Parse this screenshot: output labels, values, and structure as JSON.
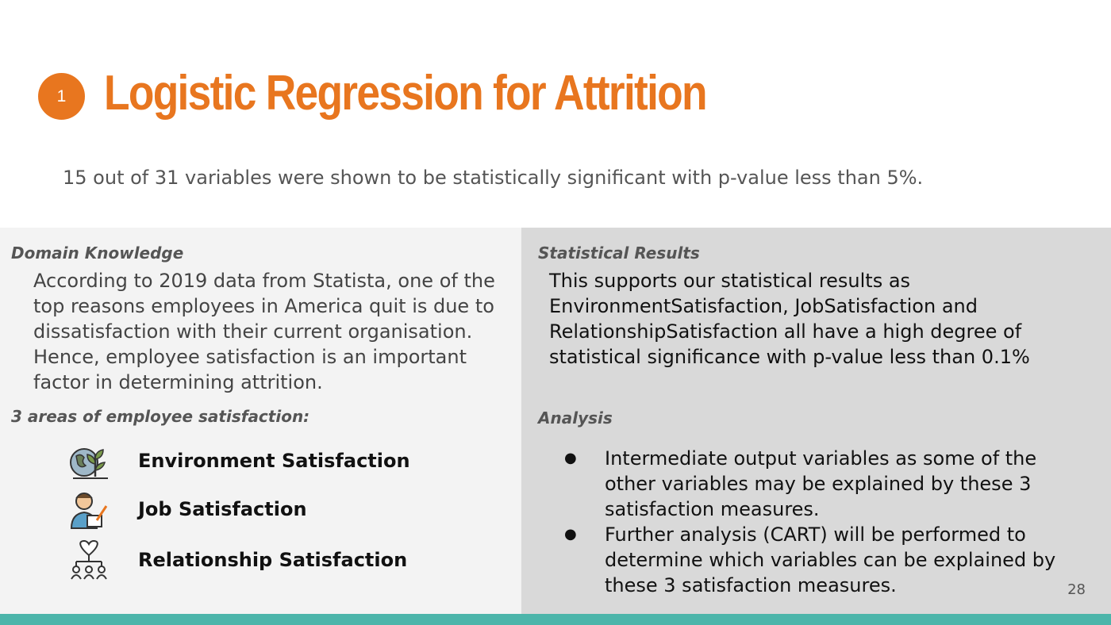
{
  "header": {
    "number": "1",
    "title": "Logistic Regression for Attrition",
    "subtitle": "15 out of 31 variables were shown to be statistically significant with p-value less than 5%."
  },
  "left": {
    "domain_heading": "Domain Knowledge",
    "domain_text": "According to 2019 data from Statista, one of the top reasons employees in America quit is due to dissatisfaction with their current organisation. Hence, employee satisfaction is an important factor in determining attrition.",
    "areas_heading": "3 areas of employee satisfaction:",
    "items": [
      {
        "label": "Environment Satisfaction",
        "icon": "environment-icon"
      },
      {
        "label": "Job Satisfaction",
        "icon": "job-icon"
      },
      {
        "label": "Relationship Satisfaction",
        "icon": "relationship-icon"
      }
    ]
  },
  "right": {
    "stats_heading": "Statistical Results",
    "stats_text": "This supports our statistical results as EnvironmentSatisfaction, JobSatisfaction and RelationshipSatisfaction all have a high degree of statistical significance with p-value less than 0.1%",
    "analysis_heading": "Analysis",
    "bullets": [
      "Intermediate output variables as some of the other variables may be explained by these 3 satisfaction measures.",
      "Further analysis (CART) will be performed to determine which variables can be explained by these 3 satisfaction measures."
    ]
  },
  "page_number": "28",
  "colors": {
    "accent": "#e8761f",
    "footer": "#4cb5aa",
    "left_panel": "#f3f3f3",
    "right_panel": "#d9d9d9"
  }
}
